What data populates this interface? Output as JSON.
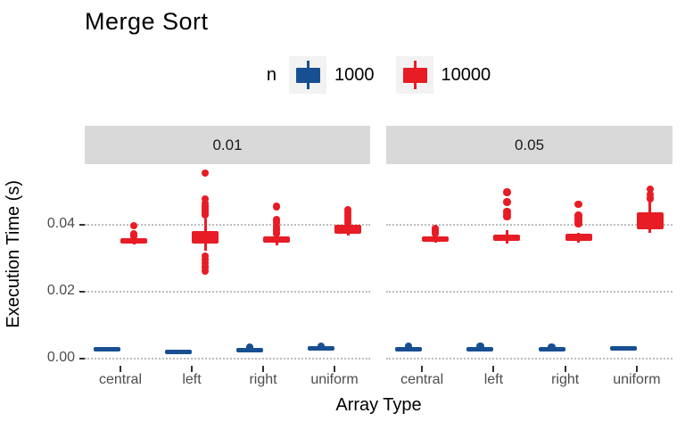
{
  "title": "Merge Sort",
  "legend": {
    "title": "n",
    "entries": [
      {
        "label": "1000",
        "color": "#174f91"
      },
      {
        "label": "10000",
        "color": "#e81c24"
      }
    ]
  },
  "axes": {
    "x_title": "Array Type",
    "y_title": "Execution Time (s)"
  },
  "colors": {
    "background": "#ffffff",
    "strip_bg": "#d9d9d9",
    "legend_key_bg": "#f2f2f2",
    "gridline": "#bdbdbd",
    "tick_label": "#4d4d4d",
    "title_text": "#000000",
    "series_1000": "#174f91",
    "series_10000": "#e81c24"
  },
  "chart_data": {
    "type": "boxplot",
    "title": "Merge Sort",
    "xlabel": "Array Type",
    "ylabel": "Execution Time (s)",
    "legend_title": "n",
    "legend_position": "top",
    "grid": "major-y-dotted",
    "ylim": [
      -0.002,
      0.058
    ],
    "yticks": [
      {
        "v": 0.0,
        "label": "0.00"
      },
      {
        "v": 0.02,
        "label": "0.02"
      },
      {
        "v": 0.04,
        "label": "0.04"
      }
    ],
    "categories": [
      "central",
      "left",
      "right",
      "uniform"
    ],
    "series": [
      "1000",
      "10000"
    ],
    "facets": [
      {
        "label": "0.01",
        "boxes": [
          {
            "category": "central",
            "series": "1000",
            "lo": 0.0024,
            "q1": 0.0025,
            "med": 0.0027,
            "q3": 0.0029,
            "hi": 0.003,
            "outliers": []
          },
          {
            "category": "central",
            "series": "10000",
            "lo": 0.0341,
            "q1": 0.0344,
            "med": 0.0351,
            "q3": 0.036,
            "hi": 0.0362,
            "outliers": [
              0.0367,
              0.0373,
              0.0397
            ]
          },
          {
            "category": "left",
            "series": "1000",
            "lo": 0.0018,
            "q1": 0.0019,
            "med": 0.0021,
            "q3": 0.0023,
            "hi": 0.0024,
            "outliers": []
          },
          {
            "category": "left",
            "series": "10000",
            "lo": 0.0322,
            "q1": 0.0345,
            "med": 0.0362,
            "q3": 0.0381,
            "hi": 0.0419,
            "outliers": [
              0.0262,
              0.0273,
              0.0286,
              0.0296,
              0.0306,
              0.0431,
              0.0439,
              0.0447,
              0.0455,
              0.0464,
              0.0477,
              0.0554
            ]
          },
          {
            "category": "right",
            "series": "1000",
            "lo": 0.0021,
            "q1": 0.0022,
            "med": 0.0025,
            "q3": 0.0028,
            "hi": 0.0029,
            "outliers": [
              0.0033
            ]
          },
          {
            "category": "right",
            "series": "10000",
            "lo": 0.0339,
            "q1": 0.0347,
            "med": 0.0356,
            "q3": 0.0365,
            "hi": 0.0367,
            "outliers": [
              0.0375,
              0.0385,
              0.0395,
              0.0405,
              0.0415,
              0.0455
            ]
          },
          {
            "category": "uniform",
            "series": "1000",
            "lo": 0.0027,
            "q1": 0.0028,
            "med": 0.003,
            "q3": 0.0032,
            "hi": 0.0033,
            "outliers": [
              0.0037
            ]
          },
          {
            "category": "uniform",
            "series": "10000",
            "lo": 0.0369,
            "q1": 0.0373,
            "med": 0.0386,
            "q3": 0.04,
            "hi": 0.0402,
            "outliers": [
              0.0405,
              0.0413,
              0.0421,
              0.0429,
              0.0437,
              0.0445
            ]
          }
        ]
      },
      {
        "label": "0.05",
        "boxes": [
          {
            "category": "central",
            "series": "1000",
            "lo": 0.0025,
            "q1": 0.0026,
            "med": 0.0028,
            "q3": 0.003,
            "hi": 0.0031,
            "outliers": [
              0.0037
            ]
          },
          {
            "category": "central",
            "series": "10000",
            "lo": 0.0346,
            "q1": 0.035,
            "med": 0.0357,
            "q3": 0.0365,
            "hi": 0.0367,
            "outliers": [
              0.0373,
              0.038,
              0.0388
            ]
          },
          {
            "category": "left",
            "series": "1000",
            "lo": 0.0025,
            "q1": 0.0026,
            "med": 0.0028,
            "q3": 0.0031,
            "hi": 0.0032,
            "outliers": [
              0.0038
            ]
          },
          {
            "category": "left",
            "series": "10000",
            "lo": 0.0345,
            "q1": 0.0351,
            "med": 0.036,
            "q3": 0.0372,
            "hi": 0.0384,
            "outliers": [
              0.0424,
              0.0432,
              0.044,
              0.0468,
              0.0497
            ]
          },
          {
            "category": "right",
            "series": "1000",
            "lo": 0.0025,
            "q1": 0.0026,
            "med": 0.0028,
            "q3": 0.003,
            "hi": 0.0031,
            "outliers": [
              0.0034
            ]
          },
          {
            "category": "right",
            "series": "10000",
            "lo": 0.0348,
            "q1": 0.0352,
            "med": 0.0361,
            "q3": 0.0374,
            "hi": 0.0376,
            "outliers": [
              0.0404,
              0.0412,
              0.042,
              0.0428,
              0.0461
            ]
          },
          {
            "category": "uniform",
            "series": "1000",
            "lo": 0.0028,
            "q1": 0.0029,
            "med": 0.003,
            "q3": 0.0032,
            "hi": 0.0033,
            "outliers": []
          },
          {
            "category": "uniform",
            "series": "10000",
            "lo": 0.0377,
            "q1": 0.0387,
            "med": 0.0408,
            "q3": 0.0437,
            "hi": 0.0471,
            "outliers": [
              0.0479,
              0.0491,
              0.0507
            ]
          }
        ]
      }
    ]
  }
}
